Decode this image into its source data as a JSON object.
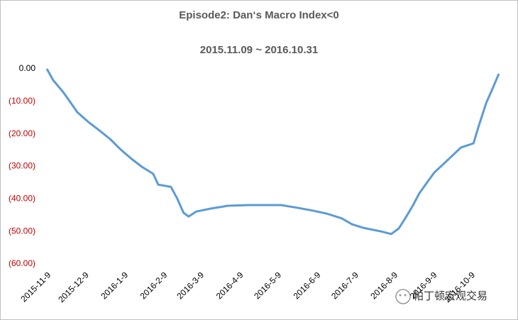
{
  "chart_data": {
    "type": "line",
    "title": "Episode2: Dan‘s Macro Index<0",
    "subtitle": "2015.11.09 ~ 2016.10.31",
    "watermark": "帕丁顿宏观交易",
    "xlim": [
      "2015-11-09",
      "2016-10-31"
    ],
    "xticks": [
      {
        "value": "2015-11-09",
        "label": "2015-11-9"
      },
      {
        "value": "2015-12-09",
        "label": "2015-12-9"
      },
      {
        "value": "2016-01-09",
        "label": "2016-1-9"
      },
      {
        "value": "2016-02-09",
        "label": "2016-2-9"
      },
      {
        "value": "2016-03-09",
        "label": "2016-3-9"
      },
      {
        "value": "2016-04-09",
        "label": "2016-4-9"
      },
      {
        "value": "2016-05-09",
        "label": "2016-5-9"
      },
      {
        "value": "2016-06-09",
        "label": "2016-6-9"
      },
      {
        "value": "2016-07-09",
        "label": "2016-7-9"
      },
      {
        "value": "2016-08-09",
        "label": "2016-8-9"
      },
      {
        "value": "2016-09-09",
        "label": "2016-9-9"
      },
      {
        "value": "2016-10-09",
        "label": "2016-10-9"
      }
    ],
    "ylim": [
      -60,
      0
    ],
    "yticks": [
      {
        "value": 0,
        "label": "0.00"
      },
      {
        "value": -10,
        "label": "(10.00)"
      },
      {
        "value": -20,
        "label": "(20.00)"
      },
      {
        "value": -30,
        "label": "(30.00)"
      },
      {
        "value": -40,
        "label": "(40.00)"
      },
      {
        "value": -50,
        "label": "(50.00)"
      },
      {
        "value": -60,
        "label": "(60.00)"
      }
    ],
    "series": [
      {
        "color": "#5b9bd5",
        "x": [
          "2015-11-09",
          "2015-11-14",
          "2015-11-22",
          "2015-11-28",
          "2015-12-03",
          "2015-12-12",
          "2015-12-20",
          "2015-12-29",
          "2016-01-06",
          "2016-01-15",
          "2016-01-23",
          "2016-02-01",
          "2016-02-05",
          "2016-02-15",
          "2016-02-20",
          "2016-02-25",
          "2016-02-29",
          "2016-03-06",
          "2016-03-17",
          "2016-03-31",
          "2016-04-17",
          "2016-05-12",
          "2016-05-26",
          "2016-06-06",
          "2016-06-17",
          "2016-06-29",
          "2016-07-07",
          "2016-07-16",
          "2016-07-30",
          "2016-08-07",
          "2016-08-13",
          "2016-08-18",
          "2016-08-24",
          "2016-08-29",
          "2016-09-04",
          "2016-09-10",
          "2016-09-18",
          "2016-09-24",
          "2016-10-01",
          "2016-10-11",
          "2016-10-15",
          "2016-10-21",
          "2016-10-26",
          "2016-10-31"
        ],
        "values": [
          0,
          -3.5,
          -7.2,
          -10.5,
          -13.3,
          -16.4,
          -18.8,
          -21.6,
          -24.7,
          -27.7,
          -30.1,
          -32.3,
          -35.6,
          -36.3,
          -39.9,
          -44.3,
          -45.4,
          -43.9,
          -43.0,
          -42.1,
          -41.9,
          -41.9,
          -42.8,
          -43.6,
          -44.5,
          -46.0,
          -47.8,
          -48.9,
          -50.0,
          -50.8,
          -49.1,
          -46.0,
          -42.1,
          -38.4,
          -35.1,
          -31.9,
          -29.0,
          -26.8,
          -24.2,
          -22.9,
          -17.7,
          -10.5,
          -6.1,
          -1.5
        ]
      }
    ]
  }
}
